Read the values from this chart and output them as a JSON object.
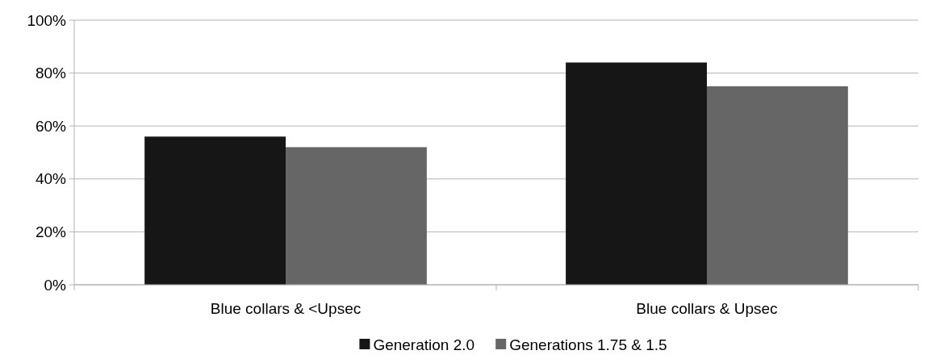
{
  "chart_data": {
    "type": "bar",
    "categories": [
      "Blue collars & <Upsec",
      "Blue collars & Upsec"
    ],
    "series": [
      {
        "name": "Generation 2.0",
        "color": "#161616",
        "values": [
          56,
          84
        ]
      },
      {
        "name": "Generations 1.75 & 1.5",
        "color": "#666666",
        "values": [
          52,
          75
        ]
      }
    ],
    "ylim": [
      0,
      100
    ],
    "yticks": [
      {
        "value": 0,
        "label": "0%"
      },
      {
        "value": 20,
        "label": "20%"
      },
      {
        "value": 40,
        "label": "40%"
      },
      {
        "value": 60,
        "label": "60%"
      },
      {
        "value": 80,
        "label": "80%"
      },
      {
        "value": 100,
        "label": "100%"
      }
    ],
    "grid": "y",
    "legend": "bottom"
  }
}
